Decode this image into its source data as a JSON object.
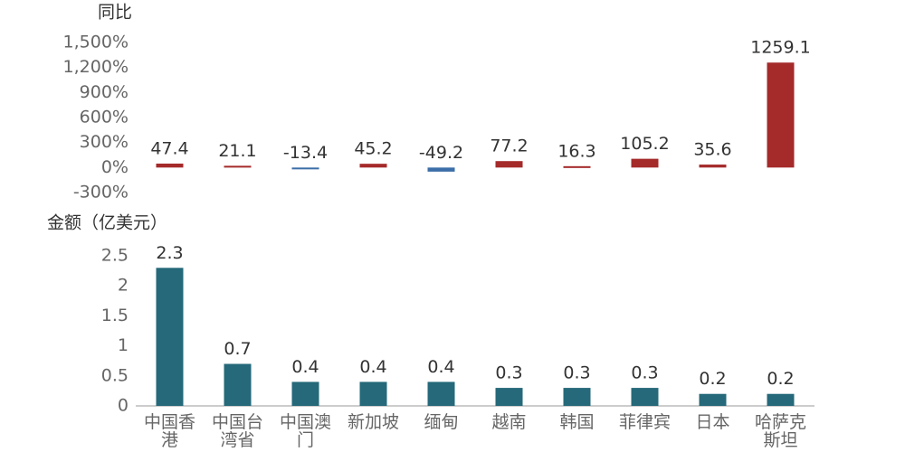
{
  "chart_data": [
    {
      "type": "bar",
      "ylabel": "同比",
      "values": [
        47.4,
        21.1,
        -13.4,
        45.2,
        -49.2,
        77.2,
        16.3,
        105.2,
        35.6,
        1259.1
      ],
      "positive_color": "#a52a2a",
      "negative_color": "#3b6ea8",
      "ylim": [
        -300,
        1500
      ],
      "yticks": [
        {
          "value": -300,
          "label": "-300%"
        },
        {
          "value": 0,
          "label": "0%"
        },
        {
          "value": 300,
          "label": "300%"
        },
        {
          "value": 600,
          "label": "600%"
        },
        {
          "value": 900,
          "label": "900%"
        },
        {
          "value": 1200,
          "label": "1,200%"
        },
        {
          "value": 1500,
          "label": "1,500%"
        }
      ]
    },
    {
      "type": "bar",
      "ylabel": "金额（亿美元）",
      "categories": [
        "中国香港",
        "中国台湾省",
        "中国澳门",
        "新加坡",
        "缅甸",
        "越南",
        "韩国",
        "菲律宾",
        "日本",
        "哈萨克斯坦"
      ],
      "values": [
        2.3,
        0.7,
        0.4,
        0.4,
        0.4,
        0.3,
        0.3,
        0.3,
        0.2,
        0.2
      ],
      "color": "#25697a",
      "ylim": [
        0,
        2.5
      ],
      "yticks": [
        0,
        0.5,
        1,
        1.5,
        2,
        2.5
      ]
    }
  ]
}
